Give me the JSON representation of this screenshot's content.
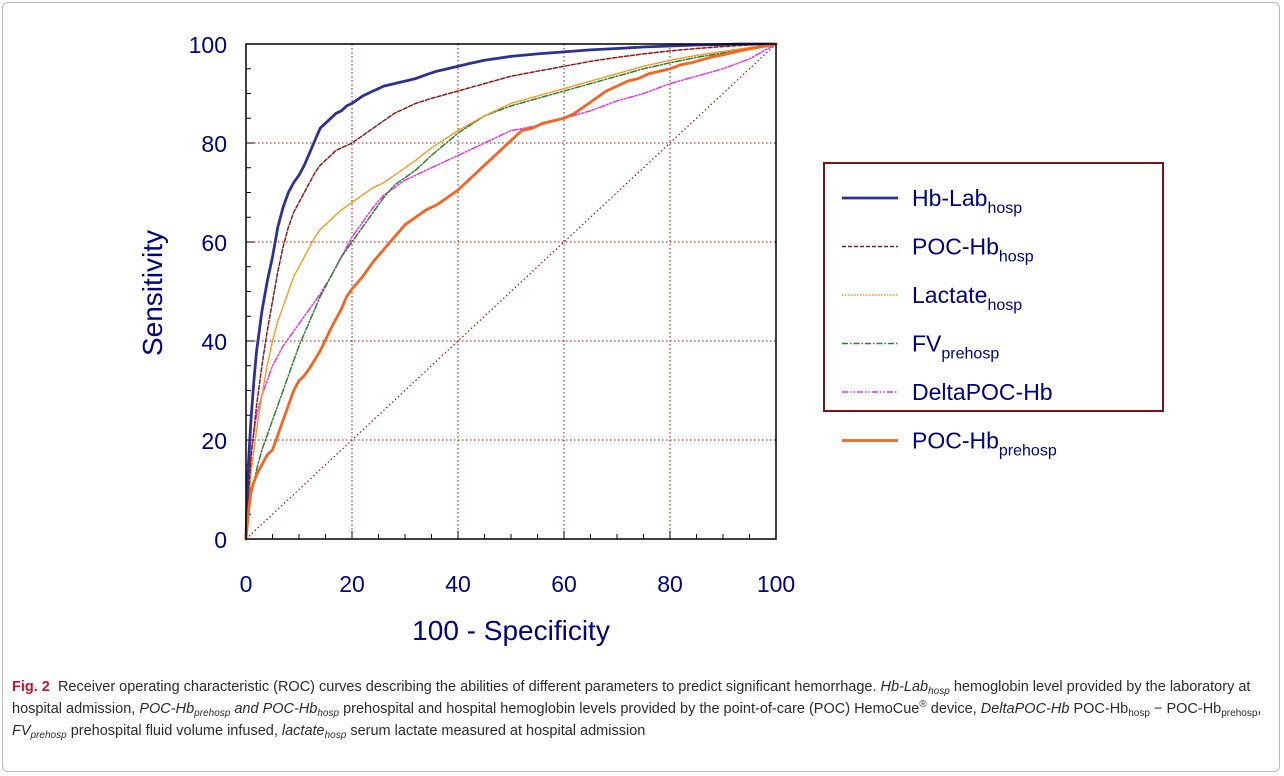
{
  "chart_data": {
    "type": "line",
    "xlabel": "100 - Specificity",
    "ylabel": "Sensitivity",
    "xlim": [
      0,
      100
    ],
    "ylim": [
      0,
      100
    ],
    "xticks": [
      "0",
      "20",
      "40",
      "60",
      "80",
      "100"
    ],
    "yticks": [
      "0",
      "20",
      "40",
      "60",
      "80",
      "100"
    ],
    "grid": true,
    "legend_position": "right",
    "reference_line": "diagonal",
    "series": [
      {
        "name": "Hb-Lab",
        "name_sub": "hosp",
        "color": "#2e3192",
        "style": "solid",
        "x": [
          0,
          0.3,
          0.6,
          1,
          1.5,
          2,
          3,
          4,
          5,
          6,
          7,
          8,
          9,
          10,
          11,
          12,
          13,
          14,
          15,
          16,
          17,
          18,
          19,
          20,
          22,
          24,
          26,
          28,
          30,
          32,
          34,
          36,
          38,
          40,
          42,
          45,
          50,
          55,
          60,
          65,
          70,
          75,
          80,
          85,
          90,
          93,
          96,
          100
        ],
        "y": [
          0,
          12,
          18,
          25,
          32,
          38,
          46,
          52,
          57,
          63,
          67,
          70,
          72,
          73.5,
          75.5,
          78,
          80.5,
          83,
          84,
          85,
          86,
          86.5,
          87.5,
          88,
          89.5,
          90.5,
          91.5,
          92,
          92.5,
          93,
          93.8,
          94.5,
          95,
          95.5,
          96,
          96.7,
          97.5,
          98,
          98.4,
          98.8,
          99.1,
          99.4,
          99.6,
          99.8,
          99.9,
          100,
          100,
          100
        ]
      },
      {
        "name": "POC-Hb",
        "name_sub": "hosp",
        "color": "#8b1a1a",
        "style": "dashed",
        "x": [
          0,
          0.5,
          1,
          2,
          3,
          4,
          5,
          6,
          7,
          8,
          9,
          10,
          11,
          12,
          13,
          14,
          15,
          16,
          17,
          18,
          19,
          20,
          22,
          24,
          26,
          28,
          30,
          32,
          35,
          40,
          45,
          50,
          55,
          60,
          65,
          70,
          75,
          80,
          85,
          90,
          95,
          100
        ],
        "y": [
          0,
          10,
          17,
          27,
          35,
          42,
          48,
          54,
          59,
          63,
          66,
          68,
          70,
          72,
          74,
          75.5,
          76.5,
          77.5,
          78.5,
          79,
          79.5,
          80,
          81.5,
          83,
          84.5,
          86,
          87,
          88,
          89,
          90.5,
          92,
          93.5,
          94.5,
          95.5,
          96.5,
          97.3,
          98,
          98.6,
          99.1,
          99.5,
          99.8,
          100
        ]
      },
      {
        "name": "Lactate",
        "name_sub": "hosp",
        "color": "#f7941d",
        "style": "dotted",
        "x": [
          0,
          0.5,
          1,
          2,
          3,
          4,
          5,
          6,
          7,
          8,
          9,
          10,
          11,
          12,
          13,
          14,
          15,
          16,
          18,
          20,
          22,
          24,
          26,
          28,
          30,
          32,
          35,
          40,
          45,
          50,
          55,
          60,
          65,
          70,
          75,
          80,
          85,
          90,
          95,
          100
        ],
        "y": [
          0,
          8,
          14,
          22,
          29,
          35,
          40,
          44,
          47,
          50,
          53,
          55,
          57,
          59,
          61,
          62.5,
          63.5,
          64.5,
          66.5,
          68,
          69.5,
          71,
          72,
          73.5,
          75,
          76.5,
          79,
          82.5,
          85.5,
          88,
          89.5,
          91,
          92.5,
          94,
          95.5,
          96.7,
          97.7,
          98.5,
          99.3,
          100
        ]
      },
      {
        "name": "FV",
        "name_sub": "prehosp",
        "color": "#2e7d32",
        "style": "dashdot",
        "x": [
          0,
          0.5,
          1,
          2,
          3,
          4,
          5,
          6,
          7,
          8,
          9,
          10,
          12,
          14,
          16,
          18,
          20,
          22,
          24,
          26,
          28,
          30,
          32,
          35,
          40,
          45,
          50,
          55,
          60,
          65,
          70,
          75,
          80,
          85,
          90,
          95,
          100
        ],
        "y": [
          0,
          5,
          9,
          14,
          18,
          21,
          24,
          27,
          30,
          33,
          36,
          39,
          44,
          49,
          53,
          57,
          60,
          63,
          66,
          69,
          71.5,
          73,
          74.5,
          77.5,
          82,
          85.5,
          87.5,
          89,
          90.5,
          92,
          93.5,
          95,
          96.2,
          97.3,
          98.2,
          99.1,
          100
        ]
      },
      {
        "name": "DeltaPOC-Hb",
        "name_sub": "",
        "color": "#e633e6",
        "style": "dashdotdot",
        "x": [
          0,
          0.5,
          1,
          2,
          3,
          4,
          5,
          6,
          7,
          8,
          9,
          10,
          12,
          14,
          16,
          18,
          20,
          22,
          24,
          26,
          28,
          30,
          33,
          36,
          40,
          45,
          50,
          55,
          60,
          65,
          70,
          75,
          80,
          85,
          90,
          95,
          100
        ],
        "y": [
          0,
          12,
          18,
          25,
          29,
          32,
          35,
          37,
          39,
          40.5,
          42,
          43.5,
          46.5,
          49.5,
          53,
          57,
          61,
          64,
          67,
          69.5,
          71,
          72.5,
          74,
          75.5,
          77.5,
          80,
          82.5,
          83.5,
          85,
          86.5,
          88.5,
          90,
          92,
          93.5,
          95,
          97,
          100
        ]
      },
      {
        "name": "POC-Hb",
        "name_sub": "prehosp",
        "color": "#f26522",
        "style": "solid",
        "x": [
          0,
          0.5,
          1,
          2,
          3,
          4,
          5,
          6,
          7,
          8,
          9,
          10,
          11,
          12,
          14,
          16,
          18,
          19,
          20,
          22,
          24,
          26,
          28,
          30,
          32,
          34,
          36,
          38,
          40,
          42,
          44,
          46,
          48,
          50,
          52,
          54,
          56,
          58,
          60,
          62,
          64,
          66,
          68,
          70,
          72,
          74,
          76,
          78,
          80,
          82,
          84,
          86,
          88,
          90,
          92,
          94,
          96,
          98,
          100
        ],
        "y": [
          0,
          6,
          10,
          13,
          15,
          17,
          18,
          21,
          24,
          27,
          30,
          32,
          33,
          34.5,
          38,
          42.5,
          46.5,
          49,
          50.5,
          53,
          56,
          58.5,
          61,
          63.5,
          65,
          66.5,
          67.5,
          69,
          70.5,
          72.5,
          74.5,
          76.5,
          78.5,
          80.5,
          82.5,
          83,
          84,
          84.5,
          85,
          86,
          87.5,
          89,
          90.5,
          91.5,
          92.5,
          93,
          94,
          94.5,
          95,
          95.8,
          96.2,
          96.8,
          97.4,
          97.8,
          98.3,
          98.8,
          99.2,
          99.6,
          100
        ]
      }
    ]
  },
  "caption": {
    "fig_label": "Fig. 2",
    "intro": "Receiver operating characteristic (ROC) curves describing the abilities of different parameters to predict significant hemorrhage.",
    "hblab_term": "Hb-Lab",
    "hblab_sub": "hosp",
    "hblab_desc": "hemoglobin level provided by the laboratory at hospital admission,",
    "poc_term_a": "POC-Hb",
    "poc_term_a_sub": "prehosp",
    "poc_and": "and",
    "poc_term_b": "POC-Hb",
    "poc_term_b_sub": "hosp",
    "poc_desc": "prehospital and hospital hemoglobin levels provided by the point-of-care (POC) HemoCue",
    "reg_mark": "®",
    "poc_desc_end": "device,",
    "delta_term": "DeltaPOC-Hb",
    "delta_a": "POC-Hb",
    "delta_a_sub": "hosp",
    "delta_minus": "−",
    "delta_b": "POC-Hb",
    "delta_b_sub": "prehosp",
    "delta_comma": ",",
    "fv_term": "FV",
    "fv_sub": "prehosp",
    "fv_desc": "prehospital fluid volume infused,",
    "lactate_term": "lactate",
    "lactate_sub": "hosp",
    "lactate_desc": "serum lactate measured at hospital admission"
  }
}
